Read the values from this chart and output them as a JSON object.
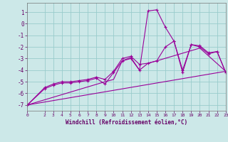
{
  "xlabel": "Windchill (Refroidissement éolien,°C)",
  "bg_color": "#cce8e8",
  "grid_color": "#99cccc",
  "line_color": "#990099",
  "xlim": [
    0,
    23
  ],
  "ylim": [
    -7.5,
    1.8
  ],
  "yticks": [
    -7,
    -6,
    -5,
    -4,
    -3,
    -2,
    -1,
    0,
    1
  ],
  "xticks": [
    0,
    2,
    3,
    4,
    5,
    6,
    7,
    8,
    9,
    10,
    11,
    12,
    13,
    14,
    15,
    16,
    17,
    18,
    19,
    20,
    21,
    22,
    23
  ],
  "series": [
    {
      "x": [
        0,
        2,
        3,
        4,
        5,
        6,
        7,
        8,
        9,
        10,
        11,
        12,
        13,
        14,
        15,
        16,
        17,
        18,
        19,
        20,
        21,
        22,
        23
      ],
      "y": [
        -7.0,
        -5.6,
        -5.3,
        -5.1,
        -5.1,
        -5.0,
        -4.9,
        -4.7,
        -5.2,
        -4.2,
        -3.2,
        -3.0,
        -4.0,
        1.1,
        1.2,
        -0.3,
        -1.5,
        -4.2,
        -1.8,
        -2.0,
        -2.6,
        -2.4,
        -4.2
      ],
      "marker": true
    },
    {
      "x": [
        0,
        2,
        3,
        4,
        5,
        6,
        7,
        8,
        9,
        10,
        11,
        12,
        13,
        14,
        15,
        16,
        17,
        18,
        19,
        20,
        21,
        22,
        23
      ],
      "y": [
        -7.0,
        -5.5,
        -5.2,
        -5.0,
        -5.0,
        -4.9,
        -4.8,
        -4.6,
        -4.8,
        -4.1,
        -3.0,
        -2.8,
        -3.5,
        -3.4,
        -3.2,
        -2.0,
        -1.5,
        -4.0,
        -1.8,
        -1.9,
        -2.5,
        -2.4,
        -4.2
      ],
      "marker": true
    },
    {
      "x": [
        0,
        9,
        10,
        11,
        12,
        13,
        14,
        15,
        20,
        23
      ],
      "y": [
        -7.0,
        -5.0,
        -4.8,
        -3.2,
        -2.9,
        -4.0,
        -3.4,
        -3.2,
        -2.1,
        -4.1
      ],
      "marker": false
    },
    {
      "x": [
        0,
        23
      ],
      "y": [
        -7.0,
        -4.1
      ],
      "marker": false
    }
  ]
}
